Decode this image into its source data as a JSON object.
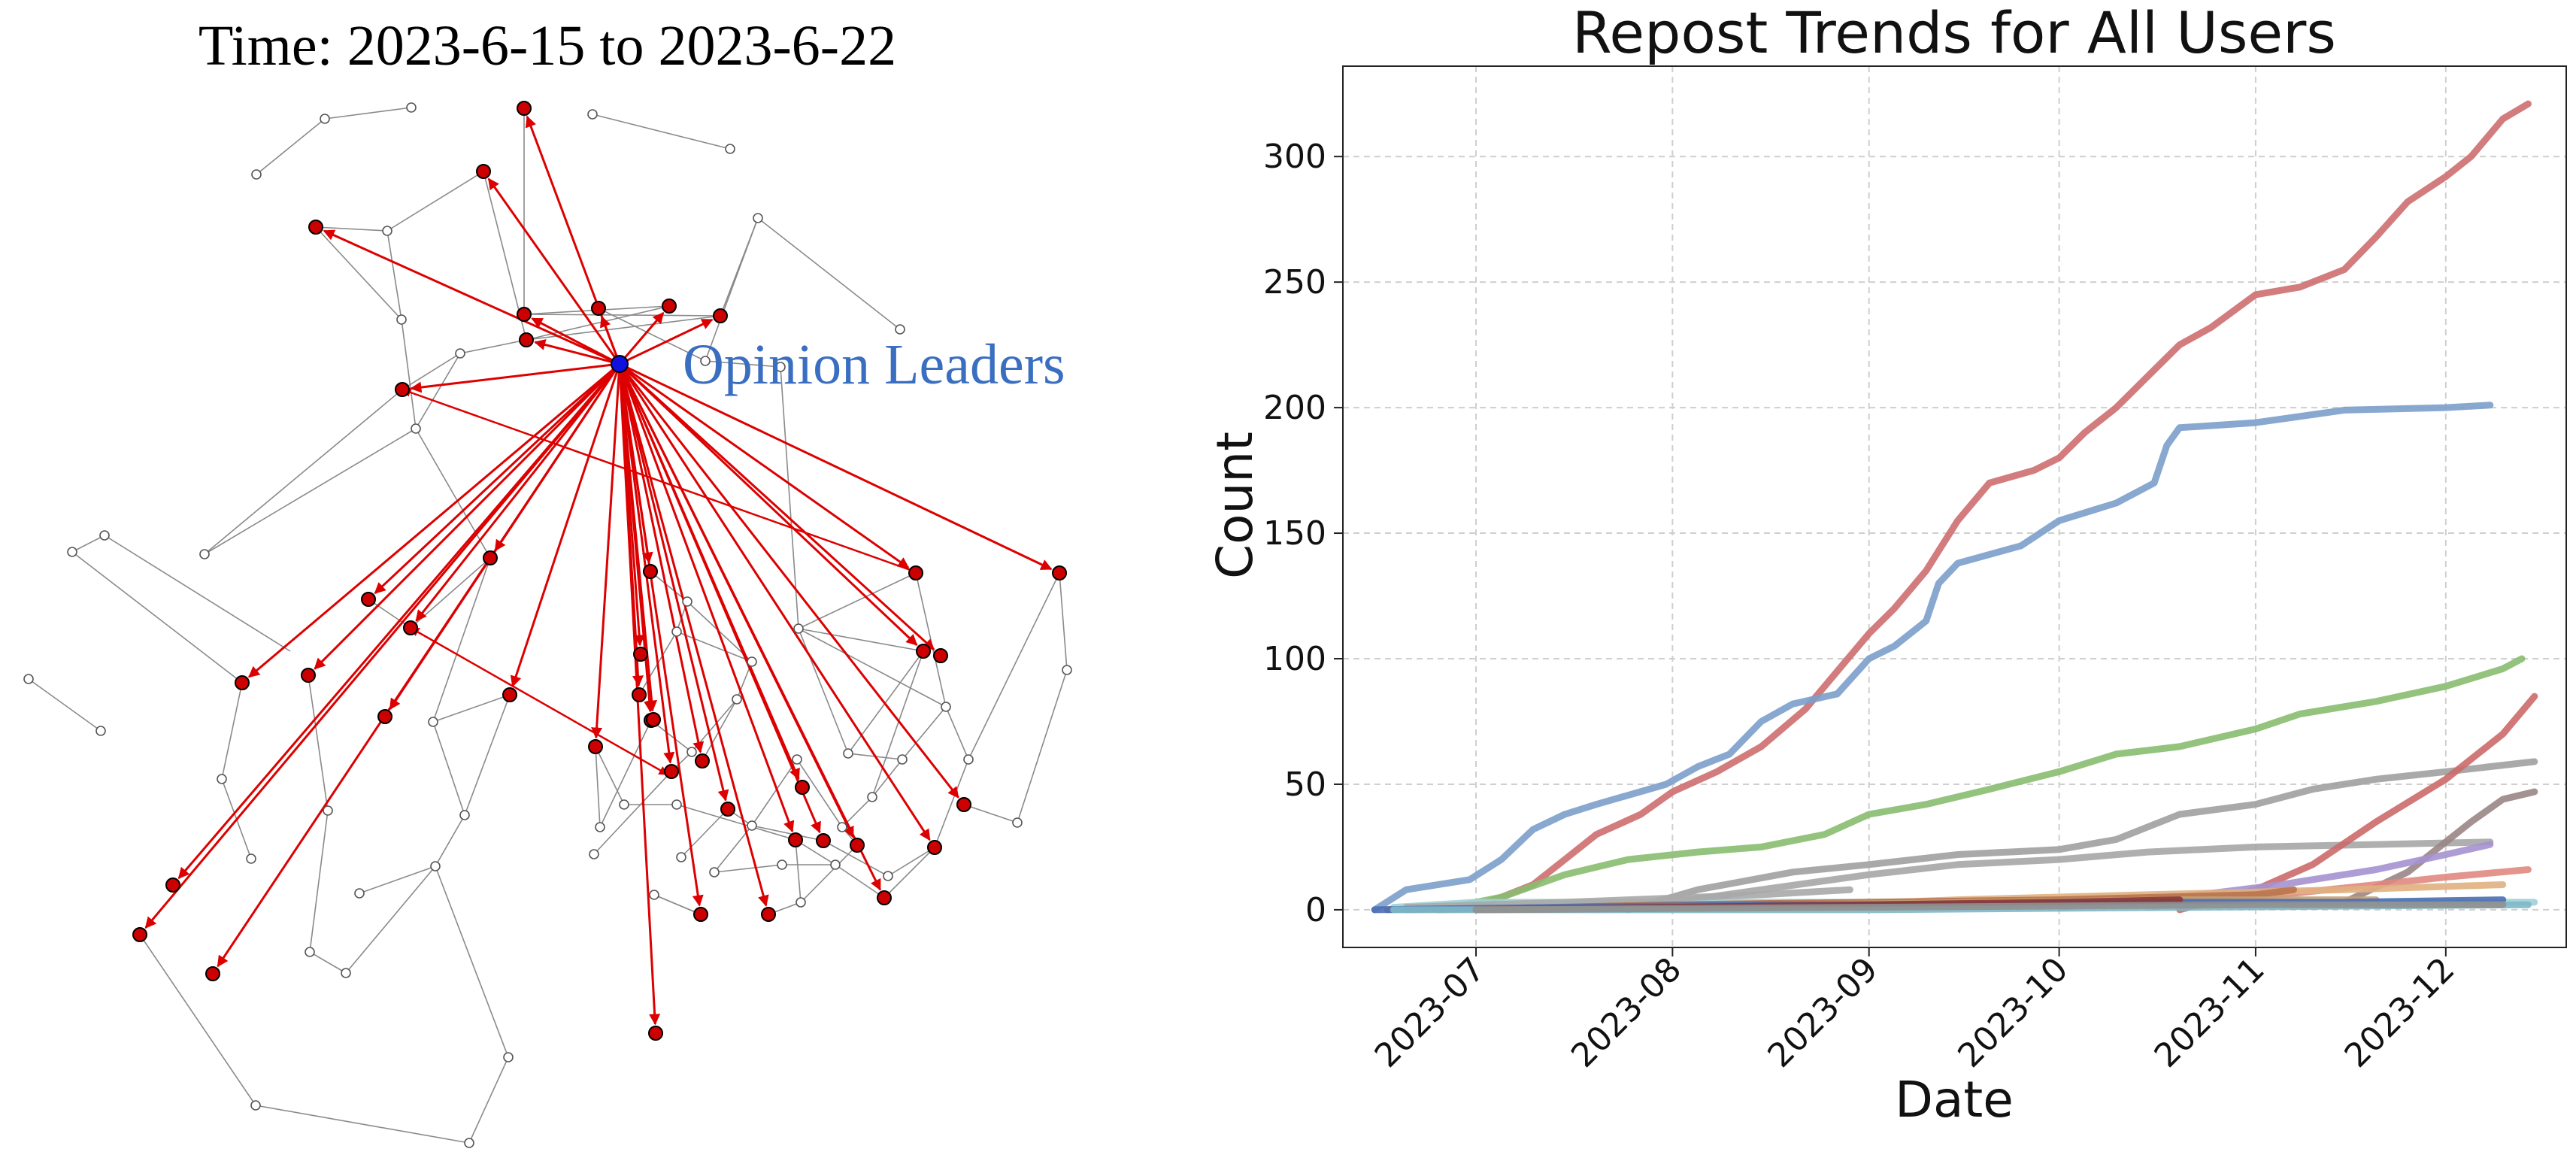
{
  "network": {
    "title": "Time: 2023-6-15 to 2023-6-22",
    "annotation": "Opinion Leaders",
    "colors": {
      "leader": "#1010e0",
      "reposter": "#cc0000",
      "edge_repost": "#dd0000",
      "edge_other": "#8a8a8a",
      "annotation": "#3a6ec0"
    }
  },
  "chart_data": {
    "type": "line",
    "title": "Repost Trends for All Users",
    "xlabel": "Date",
    "ylabel": "Count",
    "x_ticks": [
      "2023-07",
      "2023-08",
      "2023-09",
      "2023-10",
      "2023-11",
      "2023-12"
    ],
    "y_ticks": [
      0,
      50,
      100,
      150,
      200,
      250,
      300
    ],
    "xlim": [
      "2023-06-10",
      "2023-12-20"
    ],
    "ylim": [
      -15,
      336
    ],
    "grid": true,
    "legend": "none",
    "series": [
      {
        "color": "#cd6e70",
        "points": [
          [
            "2023-06-17",
            0
          ],
          [
            "2023-06-30",
            1
          ],
          [
            "2023-07-05",
            5
          ],
          [
            "2023-07-10",
            10
          ],
          [
            "2023-07-15",
            20
          ],
          [
            "2023-07-20",
            30
          ],
          [
            "2023-07-27",
            38
          ],
          [
            "2023-08-01",
            47
          ],
          [
            "2023-08-08",
            55
          ],
          [
            "2023-08-15",
            65
          ],
          [
            "2023-08-22",
            80
          ],
          [
            "2023-08-27",
            95
          ],
          [
            "2023-09-01",
            110
          ],
          [
            "2023-09-05",
            120
          ],
          [
            "2023-09-10",
            135
          ],
          [
            "2023-09-15",
            155
          ],
          [
            "2023-09-20",
            170
          ],
          [
            "2023-09-27",
            175
          ],
          [
            "2023-10-01",
            180
          ],
          [
            "2023-10-05",
            190
          ],
          [
            "2023-10-10",
            200
          ],
          [
            "2023-10-16",
            215
          ],
          [
            "2023-10-20",
            225
          ],
          [
            "2023-10-25",
            232
          ],
          [
            "2023-11-01",
            245
          ],
          [
            "2023-11-08",
            248
          ],
          [
            "2023-11-15",
            255
          ],
          [
            "2023-11-20",
            268
          ],
          [
            "2023-11-25",
            282
          ],
          [
            "2023-12-01",
            292
          ],
          [
            "2023-12-05",
            300
          ],
          [
            "2023-12-10",
            315
          ],
          [
            "2023-12-14",
            321
          ]
        ]
      },
      {
        "color": "#7b9fcb",
        "points": [
          [
            "2023-06-15",
            0
          ],
          [
            "2023-06-20",
            8
          ],
          [
            "2023-06-30",
            12
          ],
          [
            "2023-07-05",
            20
          ],
          [
            "2023-07-10",
            32
          ],
          [
            "2023-07-15",
            38
          ],
          [
            "2023-07-20",
            42
          ],
          [
            "2023-07-31",
            50
          ],
          [
            "2023-08-05",
            57
          ],
          [
            "2023-08-10",
            62
          ],
          [
            "2023-08-15",
            75
          ],
          [
            "2023-08-20",
            82
          ],
          [
            "2023-08-27",
            86
          ],
          [
            "2023-09-01",
            100
          ],
          [
            "2023-09-05",
            105
          ],
          [
            "2023-09-10",
            115
          ],
          [
            "2023-09-12",
            130
          ],
          [
            "2023-09-15",
            138
          ],
          [
            "2023-09-25",
            145
          ],
          [
            "2023-10-01",
            155
          ],
          [
            "2023-10-10",
            162
          ],
          [
            "2023-10-16",
            170
          ],
          [
            "2023-10-18",
            185
          ],
          [
            "2023-10-20",
            192
          ],
          [
            "2023-11-01",
            194
          ],
          [
            "2023-11-15",
            199
          ],
          [
            "2023-12-01",
            200
          ],
          [
            "2023-12-08",
            201
          ]
        ]
      },
      {
        "color": "#88bc70",
        "points": [
          [
            "2023-06-25",
            0
          ],
          [
            "2023-07-05",
            5
          ],
          [
            "2023-07-15",
            14
          ],
          [
            "2023-07-25",
            20
          ],
          [
            "2023-08-05",
            23
          ],
          [
            "2023-08-15",
            25
          ],
          [
            "2023-08-25",
            30
          ],
          [
            "2023-09-01",
            38
          ],
          [
            "2023-09-10",
            42
          ],
          [
            "2023-09-20",
            48
          ],
          [
            "2023-10-01",
            55
          ],
          [
            "2023-10-10",
            62
          ],
          [
            "2023-10-20",
            65
          ],
          [
            "2023-11-01",
            72
          ],
          [
            "2023-11-08",
            78
          ],
          [
            "2023-11-20",
            83
          ],
          [
            "2023-12-01",
            89
          ],
          [
            "2023-12-10",
            96
          ],
          [
            "2023-12-13",
            100
          ]
        ]
      },
      {
        "color": "#a0a0a0",
        "points": [
          [
            "2023-07-25",
            0
          ],
          [
            "2023-08-05",
            8
          ],
          [
            "2023-08-20",
            15
          ],
          [
            "2023-09-01",
            18
          ],
          [
            "2023-09-15",
            22
          ],
          [
            "2023-10-01",
            24
          ],
          [
            "2023-10-10",
            28
          ],
          [
            "2023-10-20",
            38
          ],
          [
            "2023-11-01",
            42
          ],
          [
            "2023-11-10",
            48
          ],
          [
            "2023-11-20",
            52
          ],
          [
            "2023-12-01",
            55
          ],
          [
            "2023-12-15",
            59
          ]
        ]
      },
      {
        "color": "#a6a6a6",
        "points": [
          [
            "2023-08-01",
            3
          ],
          [
            "2023-08-15",
            8
          ],
          [
            "2023-09-01",
            14
          ],
          [
            "2023-09-15",
            18
          ],
          [
            "2023-10-01",
            20
          ],
          [
            "2023-10-15",
            23
          ],
          [
            "2023-11-01",
            25
          ],
          [
            "2023-11-20",
            26
          ],
          [
            "2023-12-08",
            27
          ]
        ]
      },
      {
        "color": "#cc6a6a",
        "points": [
          [
            "2023-10-20",
            0
          ],
          [
            "2023-11-01",
            8
          ],
          [
            "2023-11-10",
            18
          ],
          [
            "2023-11-20",
            35
          ],
          [
            "2023-12-01",
            52
          ],
          [
            "2023-12-10",
            70
          ],
          [
            "2023-12-15",
            85
          ]
        ]
      },
      {
        "color": "#9a8585",
        "points": [
          [
            "2023-11-15",
            3
          ],
          [
            "2023-11-25",
            15
          ],
          [
            "2023-12-05",
            35
          ],
          [
            "2023-12-10",
            44
          ],
          [
            "2023-12-15",
            47
          ]
        ]
      },
      {
        "color": "#a592d0",
        "points": [
          [
            "2023-10-01",
            1
          ],
          [
            "2023-10-20",
            5
          ],
          [
            "2023-11-05",
            10
          ],
          [
            "2023-11-20",
            16
          ],
          [
            "2023-12-01",
            22
          ],
          [
            "2023-12-08",
            26
          ]
        ]
      },
      {
        "color": "#e08880",
        "points": [
          [
            "2023-10-15",
            1
          ],
          [
            "2023-11-01",
            5
          ],
          [
            "2023-11-20",
            10
          ],
          [
            "2023-12-01",
            13
          ],
          [
            "2023-12-14",
            16
          ]
        ]
      },
      {
        "color": "#e0b080",
        "points": [
          [
            "2023-08-15",
            1
          ],
          [
            "2023-09-15",
            4
          ],
          [
            "2023-10-15",
            6
          ],
          [
            "2023-11-15",
            8
          ],
          [
            "2023-12-10",
            10
          ]
        ]
      },
      {
        "color": "#9ed0d8",
        "points": [
          [
            "2023-06-18",
            1
          ],
          [
            "2023-07-01",
            3
          ],
          [
            "2023-08-01",
            3
          ],
          [
            "2023-09-01",
            3
          ],
          [
            "2023-10-01",
            3
          ],
          [
            "2023-11-01",
            3
          ],
          [
            "2023-12-15",
            3
          ]
        ]
      },
      {
        "color": "#a8a8a8",
        "points": [
          [
            "2023-06-20",
            1
          ],
          [
            "2023-07-15",
            3
          ],
          [
            "2023-08-15",
            6
          ],
          [
            "2023-08-29",
            8
          ]
        ]
      },
      {
        "color": "#b8734e",
        "points": [
          [
            "2023-06-25",
            0
          ],
          [
            "2023-08-01",
            2
          ],
          [
            "2023-09-01",
            3
          ],
          [
            "2023-10-01",
            4
          ],
          [
            "2023-11-01",
            6
          ],
          [
            "2023-11-07",
            8
          ]
        ]
      },
      {
        "color": "#c8a070",
        "points": [
          [
            "2023-06-20",
            0
          ],
          [
            "2023-07-20",
            1
          ],
          [
            "2023-08-20",
            2
          ],
          [
            "2023-09-20",
            3
          ],
          [
            "2023-10-20",
            4
          ],
          [
            "2023-11-20",
            4
          ]
        ]
      },
      {
        "color": "#4a6fb5",
        "points": [
          [
            "2023-06-15",
            0
          ],
          [
            "2023-07-15",
            1
          ],
          [
            "2023-08-15",
            2
          ],
          [
            "2023-09-15",
            2
          ],
          [
            "2023-10-15",
            3
          ],
          [
            "2023-11-15",
            3
          ],
          [
            "2023-12-10",
            4
          ]
        ]
      },
      {
        "color": "#8a3a3a",
        "points": [
          [
            "2023-07-01",
            0
          ],
          [
            "2023-08-01",
            1
          ],
          [
            "2023-09-01",
            2
          ],
          [
            "2023-10-01",
            3
          ],
          [
            "2023-10-20",
            4
          ]
        ]
      },
      {
        "color": "#80b8c8",
        "points": [
          [
            "2023-06-18",
            0
          ],
          [
            "2023-09-01",
            0
          ],
          [
            "2023-12-14",
            2
          ]
        ]
      },
      {
        "color": "#909090",
        "points": [
          [
            "2023-07-01",
            0
          ],
          [
            "2023-09-01",
            1
          ],
          [
            "2023-11-01",
            2
          ],
          [
            "2023-12-10",
            2
          ]
        ]
      }
    ]
  }
}
